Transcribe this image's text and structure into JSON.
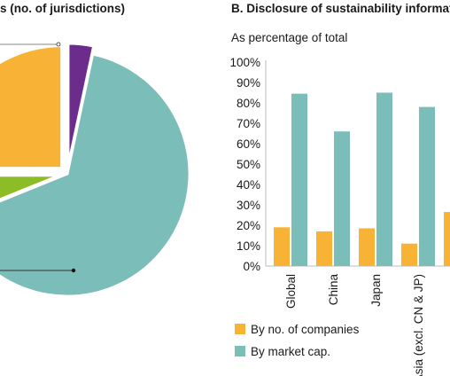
{
  "left_panel": {
    "title": "s (no. of jurisdictions)"
  },
  "right_panel": {
    "title": "B. Disclosure of sustainability informatio",
    "subtitle": "As percentage of total"
  },
  "colors": {
    "orange": "#f8b235",
    "teal": "#7bbdb8",
    "green": "#8dbd26",
    "purple": "#6b2c8c",
    "grid": "#d4d4d4"
  },
  "chart_data": [
    {
      "type": "pie",
      "title": "s (no. of jurisdictions)",
      "note": "partially visible pie; slice values estimated in degrees of arc",
      "slices": [
        {
          "color": "#7bbdb8",
          "value": 236
        },
        {
          "color": "#8dbd26",
          "value": 22
        },
        {
          "color": "#f8b235",
          "value": 90
        },
        {
          "color": "#6b2c8c",
          "value": 12
        }
      ]
    },
    {
      "type": "bar",
      "title": "B. Disclosure of sustainability informatio",
      "subtitle": "As percentage of total",
      "categories": [
        "Global",
        "China",
        "Japan",
        "Asia (excl. CN & JP)",
        ""
      ],
      "series": [
        {
          "name": "By no. of companies",
          "color": "#f8b235",
          "values": [
            19,
            17,
            18.5,
            11,
            26.5
          ]
        },
        {
          "name": "By market cap.",
          "color": "#7bbdb8",
          "values": [
            84.5,
            66,
            85,
            78,
            null
          ]
        }
      ],
      "ylim": [
        0,
        100
      ],
      "yticks": [
        "0%",
        "10%",
        "20%",
        "30%",
        "40%",
        "50%",
        "60%",
        "70%",
        "80%",
        "90%",
        "100%"
      ],
      "grid": false,
      "legend": "bottom-left"
    }
  ]
}
